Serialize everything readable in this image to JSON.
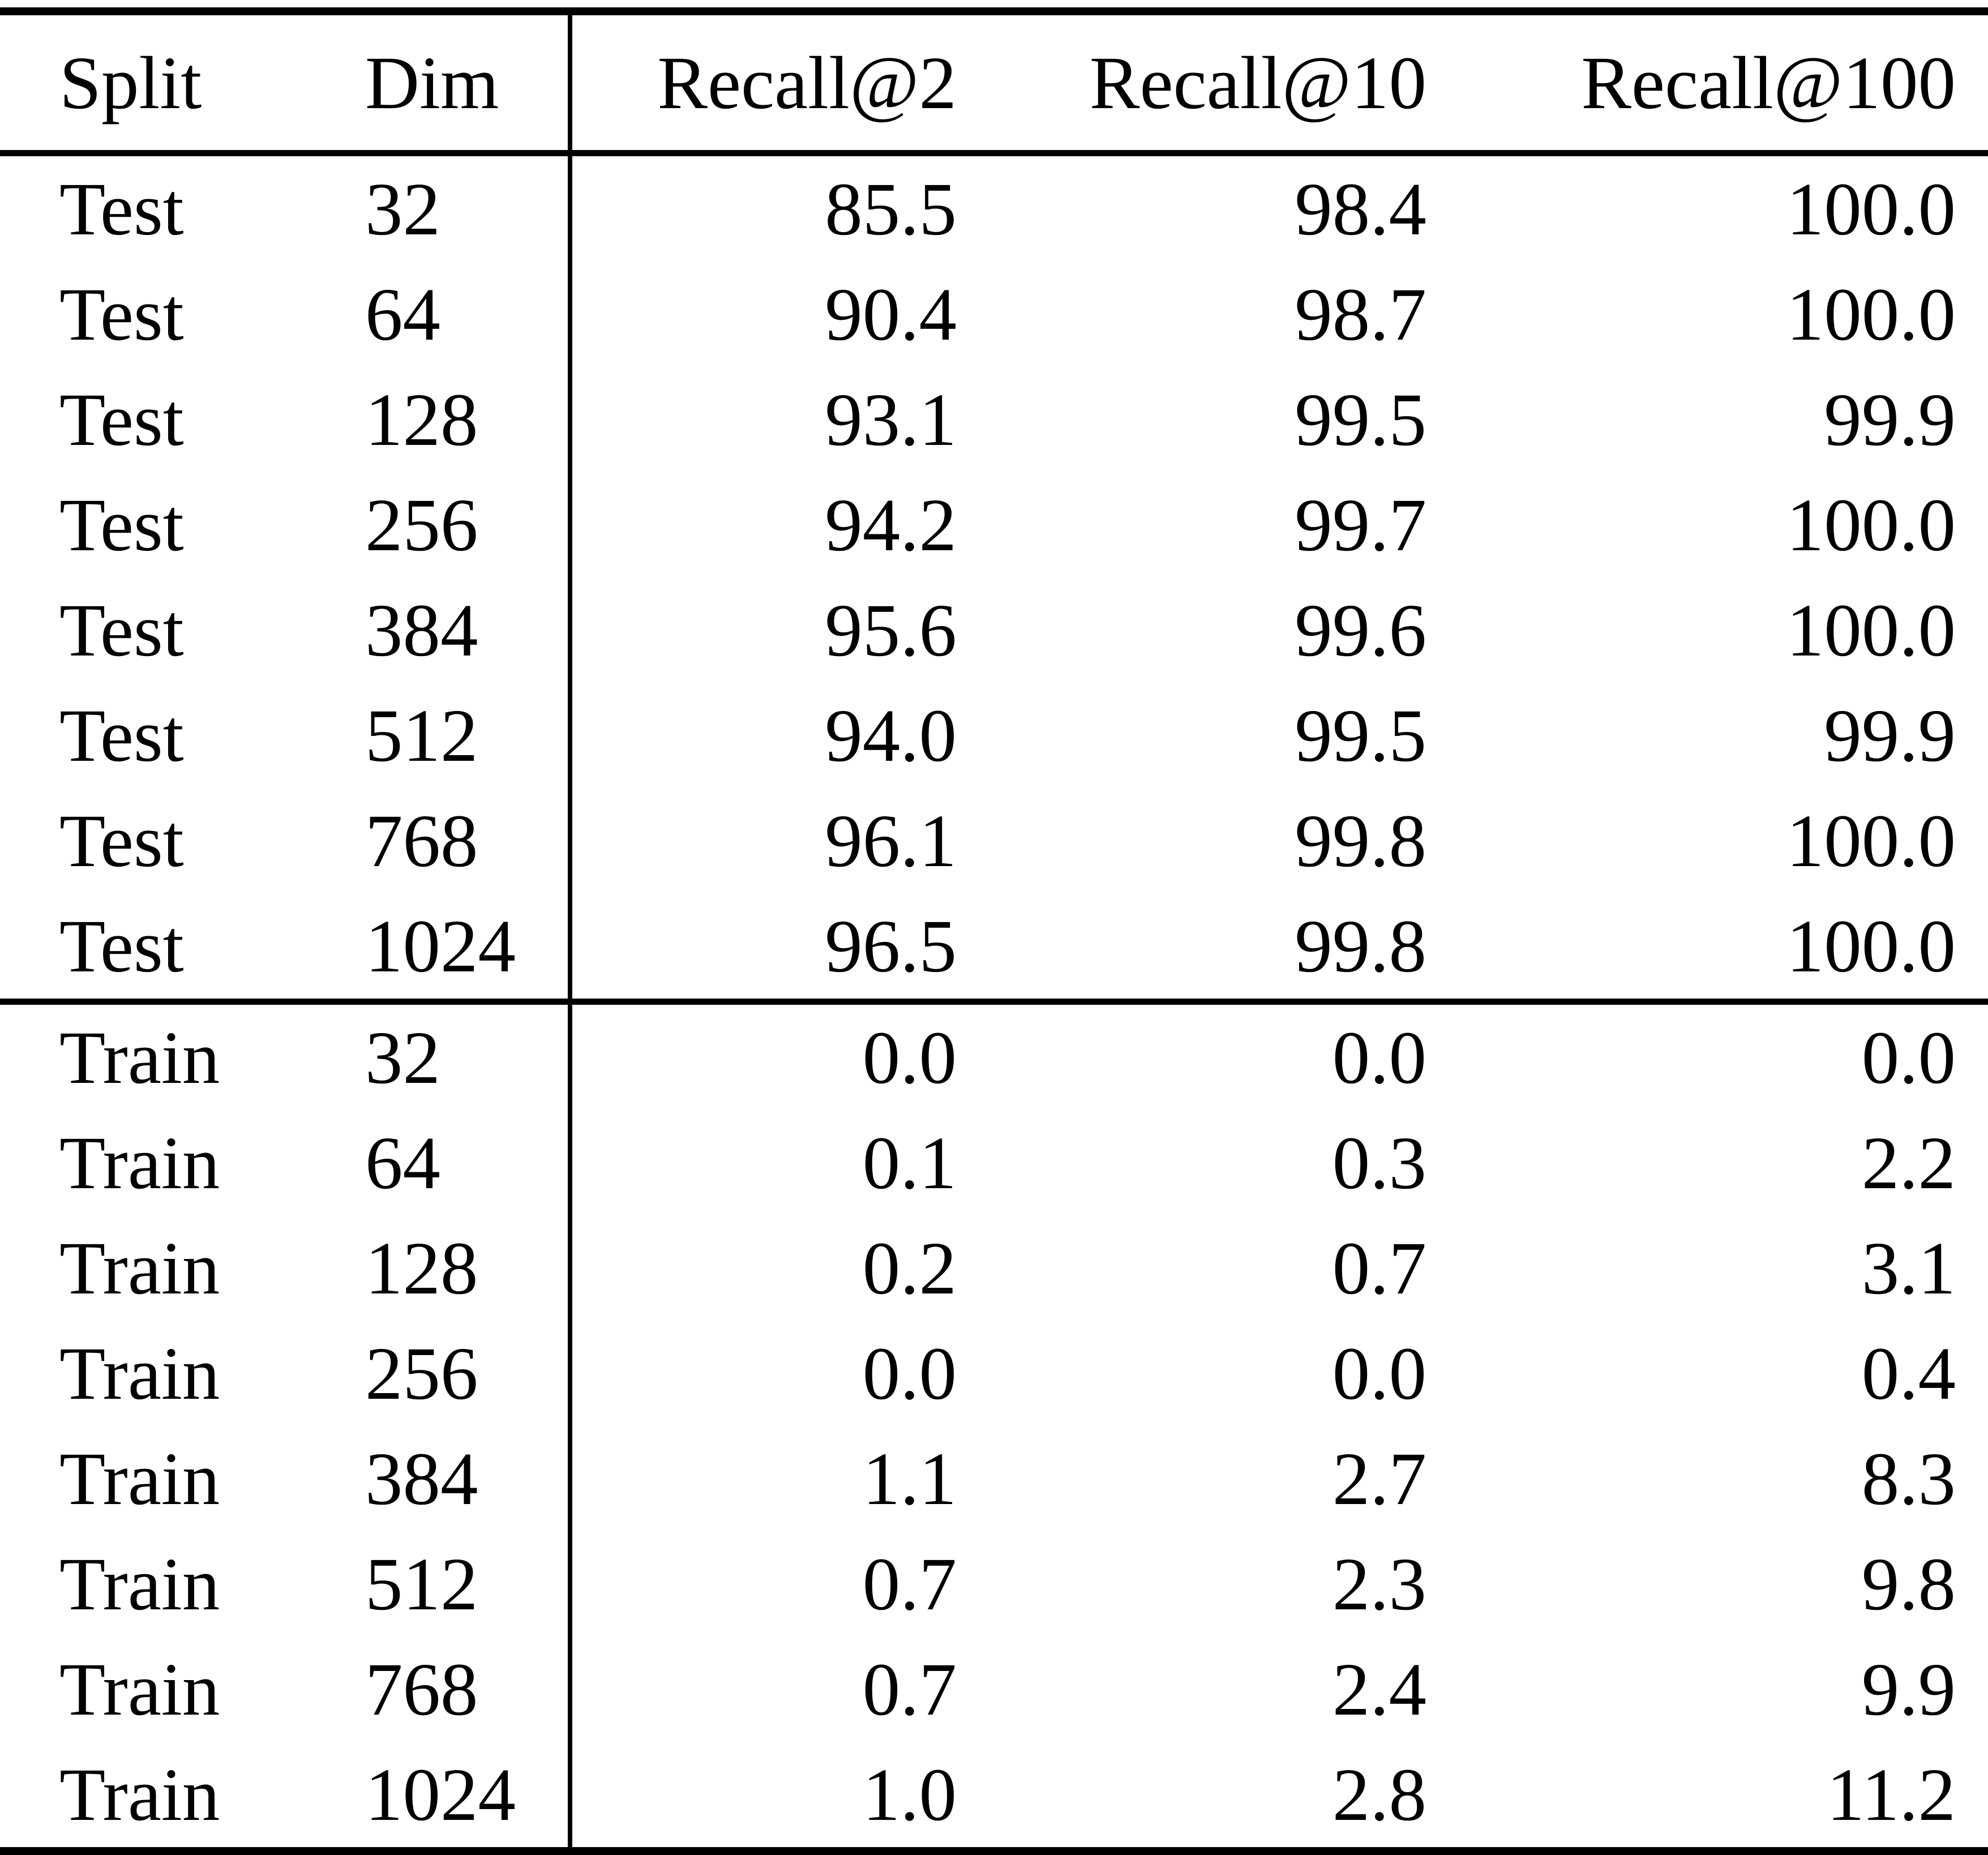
{
  "table": {
    "columns": [
      "Split",
      "Dim",
      "Recall@2",
      "Recall@10",
      "Recall@100"
    ],
    "column_keys": [
      "split",
      "dim",
      "recall-at-2",
      "recall-at-10",
      "recall-at-100"
    ],
    "sections": [
      {
        "name": "test",
        "rows": [
          [
            "Test",
            "32",
            "85.5",
            "98.4",
            "100.0"
          ],
          [
            "Test",
            "64",
            "90.4",
            "98.7",
            "100.0"
          ],
          [
            "Test",
            "128",
            "93.1",
            "99.5",
            "99.9"
          ],
          [
            "Test",
            "256",
            "94.2",
            "99.7",
            "100.0"
          ],
          [
            "Test",
            "384",
            "95.6",
            "99.6",
            "100.0"
          ],
          [
            "Test",
            "512",
            "94.0",
            "99.5",
            "99.9"
          ],
          [
            "Test",
            "768",
            "96.1",
            "99.8",
            "100.0"
          ],
          [
            "Test",
            "1024",
            "96.5",
            "99.8",
            "100.0"
          ]
        ]
      },
      {
        "name": "train",
        "rows": [
          [
            "Train",
            "32",
            "0.0",
            "0.0",
            "0.0"
          ],
          [
            "Train",
            "64",
            "0.1",
            "0.3",
            "2.2"
          ],
          [
            "Train",
            "128",
            "0.2",
            "0.7",
            "3.1"
          ],
          [
            "Train",
            "256",
            "0.0",
            "0.0",
            "0.4"
          ],
          [
            "Train",
            "384",
            "1.1",
            "2.7",
            "8.3"
          ],
          [
            "Train",
            "512",
            "0.7",
            "2.3",
            "9.8"
          ],
          [
            "Train",
            "768",
            "0.7",
            "2.4",
            "9.9"
          ],
          [
            "Train",
            "1024",
            "1.0",
            "2.8",
            "11.2"
          ]
        ]
      }
    ]
  },
  "colors": {
    "text": "#000000",
    "background": "#ffffff",
    "rule": "#000000"
  },
  "chart_data": {
    "type": "table",
    "title": "",
    "columns": [
      "Split",
      "Dim",
      "Recall@2",
      "Recall@10",
      "Recall@100"
    ],
    "rows": [
      [
        "Test",
        32,
        85.5,
        98.4,
        100.0
      ],
      [
        "Test",
        64,
        90.4,
        98.7,
        100.0
      ],
      [
        "Test",
        128,
        93.1,
        99.5,
        99.9
      ],
      [
        "Test",
        256,
        94.2,
        99.7,
        100.0
      ],
      [
        "Test",
        384,
        95.6,
        99.6,
        100.0
      ],
      [
        "Test",
        512,
        94.0,
        99.5,
        99.9
      ],
      [
        "Test",
        768,
        96.1,
        99.8,
        100.0
      ],
      [
        "Test",
        1024,
        96.5,
        99.8,
        100.0
      ],
      [
        "Train",
        32,
        0.0,
        0.0,
        0.0
      ],
      [
        "Train",
        64,
        0.1,
        0.3,
        2.2
      ],
      [
        "Train",
        128,
        0.2,
        0.7,
        3.1
      ],
      [
        "Train",
        256,
        0.0,
        0.0,
        0.4
      ],
      [
        "Train",
        384,
        1.1,
        2.7,
        8.3
      ],
      [
        "Train",
        512,
        0.7,
        2.3,
        9.8
      ],
      [
        "Train",
        768,
        0.7,
        2.4,
        9.9
      ],
      [
        "Train",
        1024,
        1.0,
        2.8,
        11.2
      ]
    ],
    "layout_hints": {
      "section_groups": [
        "Test",
        "Train"
      ],
      "vertical_rule_after_column": "Dim",
      "numeric_columns_right_aligned": true,
      "style": "latex-booktabs"
    }
  }
}
